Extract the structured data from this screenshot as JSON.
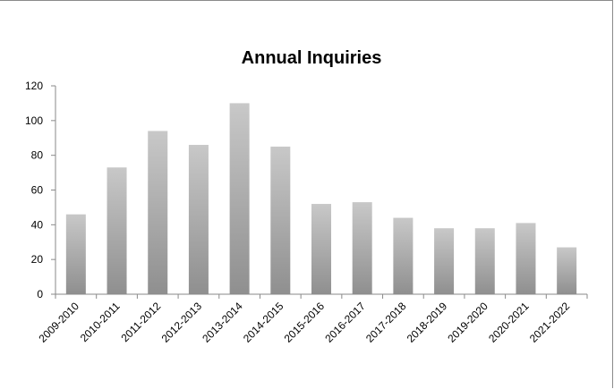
{
  "chart_data": {
    "type": "bar",
    "title": "Annual Inquiries",
    "xlabel": "",
    "ylabel": "",
    "categories": [
      "2009-2010",
      "2010-2011",
      "2011-2012",
      "2012-2013",
      "2013-2014",
      "2014-2015",
      "2015-2016",
      "2016-2017",
      "2017-2018",
      "2018-2019",
      "2019-2020",
      "2020-2021",
      "2021-2022"
    ],
    "values": [
      46,
      73,
      94,
      86,
      110,
      85,
      52,
      53,
      44,
      38,
      38,
      41,
      27
    ],
    "ylim": [
      0,
      120
    ],
    "yticks": [
      0,
      20,
      40,
      60,
      80,
      100,
      120
    ],
    "grid": false,
    "legend": "none",
    "colors": {
      "bar_light": "#c8c8c8",
      "bar_dark": "#8f8f8f",
      "axis": "#8a8a8a"
    }
  }
}
